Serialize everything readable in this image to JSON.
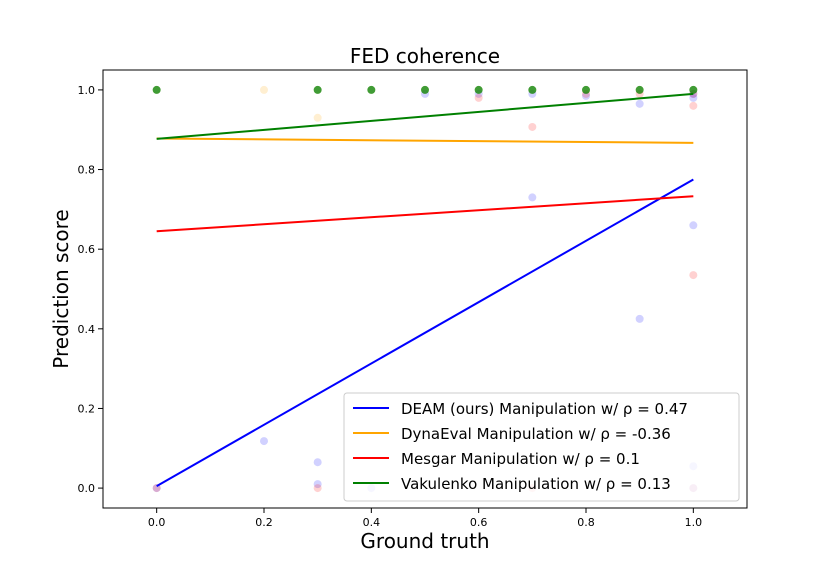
{
  "chart_data": {
    "type": "scatter",
    "title": "FED coherence",
    "xlabel": "Ground truth",
    "ylabel": "Prediction score",
    "xlim": [
      -0.1,
      1.1
    ],
    "ylim": [
      -0.05,
      1.05
    ],
    "xticks": [
      "0.0",
      "0.2",
      "0.4",
      "0.6",
      "0.8",
      "1.0"
    ],
    "yticks": [
      "0.0",
      "0.2",
      "0.4",
      "0.6",
      "0.8",
      "1.0"
    ],
    "grid": false,
    "legend_position": "lower-right",
    "series": [
      {
        "name": "DEAM (ours) Manipulation w/ ρ = 0.47",
        "color": "#0000ff",
        "fit_line": [
          [
            0.0,
            0.005
          ],
          [
            1.0,
            0.775
          ]
        ],
        "points": [
          [
            0.0,
            0.0
          ],
          [
            0.2,
            0.118
          ],
          [
            0.3,
            0.065
          ],
          [
            0.3,
            0.01
          ],
          [
            0.4,
            0.0
          ],
          [
            0.5,
            0.99
          ],
          [
            0.6,
            0.99
          ],
          [
            0.7,
            0.73
          ],
          [
            0.7,
            0.99
          ],
          [
            0.8,
            0.985
          ],
          [
            0.9,
            0.965
          ],
          [
            0.9,
            0.425
          ],
          [
            1.0,
            0.66
          ],
          [
            1.0,
            0.99
          ],
          [
            1.0,
            0.98
          ],
          [
            1.0,
            0.055
          ],
          [
            1.0,
            0.0
          ]
        ]
      },
      {
        "name": "DynaEval Manipulation w/ ρ = -0.36",
        "color": "#ffa500",
        "fit_line": [
          [
            0.0,
            0.878
          ],
          [
            1.0,
            0.867
          ]
        ],
        "points": [
          [
            0.0,
            1.0
          ],
          [
            0.2,
            1.0
          ],
          [
            0.3,
            0.93
          ],
          [
            0.3,
            1.0
          ],
          [
            0.4,
            1.0
          ],
          [
            0.5,
            1.0
          ],
          [
            0.6,
            1.0
          ],
          [
            0.7,
            1.0
          ],
          [
            0.8,
            1.0
          ],
          [
            0.9,
            1.0
          ],
          [
            1.0,
            1.0
          ]
        ]
      },
      {
        "name": "Mesgar Manipulation w/ ρ = 0.1",
        "color": "#ff0000",
        "fit_line": [
          [
            0.0,
            0.645
          ],
          [
            1.0,
            0.733
          ]
        ],
        "points": [
          [
            0.0,
            0.0
          ],
          [
            0.3,
            0.0
          ],
          [
            0.6,
            0.98
          ],
          [
            0.7,
            0.907
          ],
          [
            0.7,
            0.0
          ],
          [
            0.8,
            0.99
          ],
          [
            0.9,
            0.99
          ],
          [
            1.0,
            0.96
          ],
          [
            1.0,
            0.535
          ],
          [
            1.0,
            0.0
          ],
          [
            1.0,
            0.99
          ]
        ]
      },
      {
        "name": "Vakulenko Manipulation w/ ρ = 0.13",
        "color": "#008000",
        "fit_line": [
          [
            0.0,
            0.877
          ],
          [
            1.0,
            0.99
          ]
        ],
        "points": [
          [
            0.0,
            1.0
          ],
          [
            0.3,
            1.0
          ],
          [
            0.4,
            1.0
          ],
          [
            0.5,
            1.0
          ],
          [
            0.6,
            1.0
          ],
          [
            0.7,
            1.0
          ],
          [
            0.8,
            1.0
          ],
          [
            0.9,
            1.0
          ],
          [
            1.0,
            1.0
          ]
        ]
      }
    ]
  }
}
